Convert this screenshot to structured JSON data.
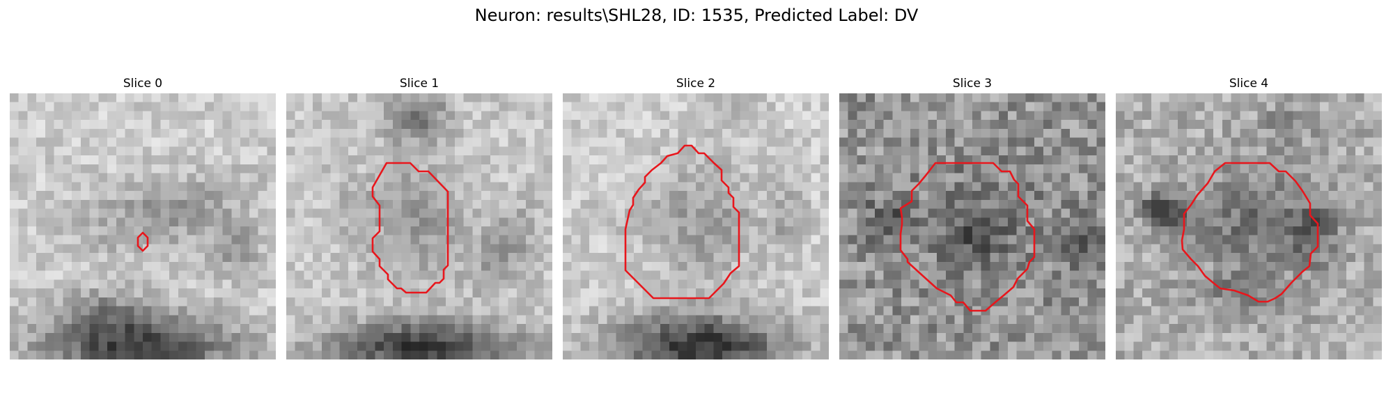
{
  "figure": {
    "title": "Neuron: results\\SHL28, ID: 1535, Predicted Label: DV"
  },
  "slices": [
    {
      "label": "Slice 0"
    },
    {
      "label": "Slice 1"
    },
    {
      "label": "Slice 2"
    },
    {
      "label": "Slice 3"
    },
    {
      "label": "Slice 4"
    }
  ],
  "colors": {
    "contour": "#e8161c",
    "background": "#ffffff"
  },
  "colormap": "gray"
}
